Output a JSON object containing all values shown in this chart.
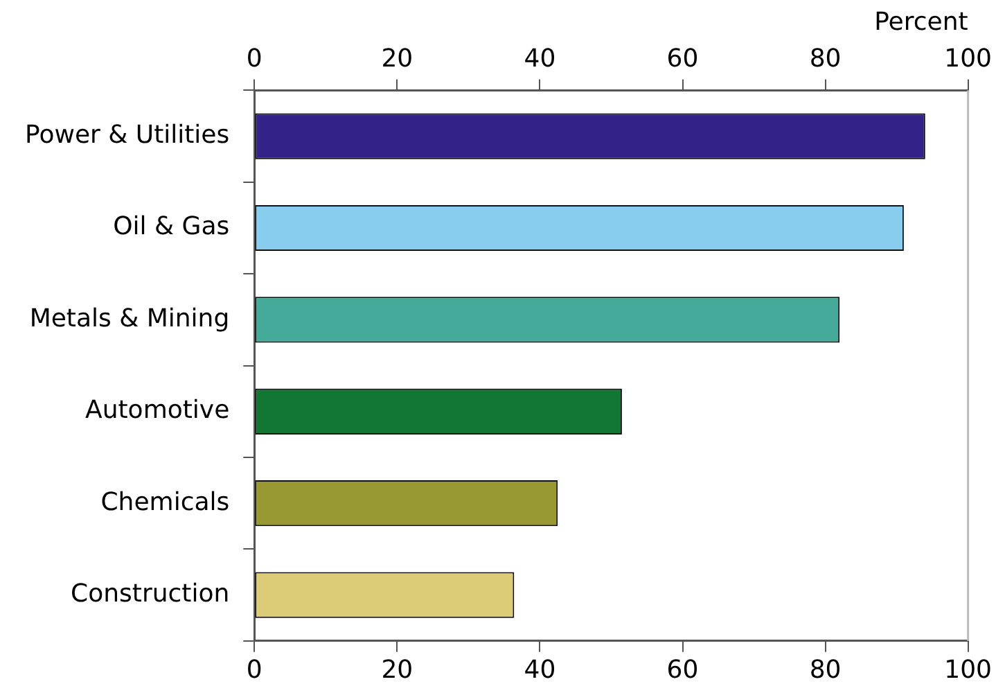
{
  "chart_data": {
    "type": "bar",
    "orientation": "horizontal",
    "xlabel": "Percent",
    "categories": [
      "Power & Utilities",
      "Oil & Gas",
      "Metals & Mining",
      "Automotive",
      "Chemicals",
      "Construction"
    ],
    "values": [
      94,
      91,
      82,
      51.5,
      42.5,
      36.4
    ],
    "colors": [
      "#332288",
      "#88ccee",
      "#44aa99",
      "#117733",
      "#999933",
      "#ddcc77"
    ],
    "xlim": [
      0,
      100
    ],
    "xticks": [
      0,
      20,
      40,
      60,
      80,
      100
    ],
    "x2lim": [
      0,
      100
    ],
    "x2ticks": [
      0,
      20,
      40,
      60,
      80,
      100
    ],
    "grid": false,
    "legend": false
  }
}
